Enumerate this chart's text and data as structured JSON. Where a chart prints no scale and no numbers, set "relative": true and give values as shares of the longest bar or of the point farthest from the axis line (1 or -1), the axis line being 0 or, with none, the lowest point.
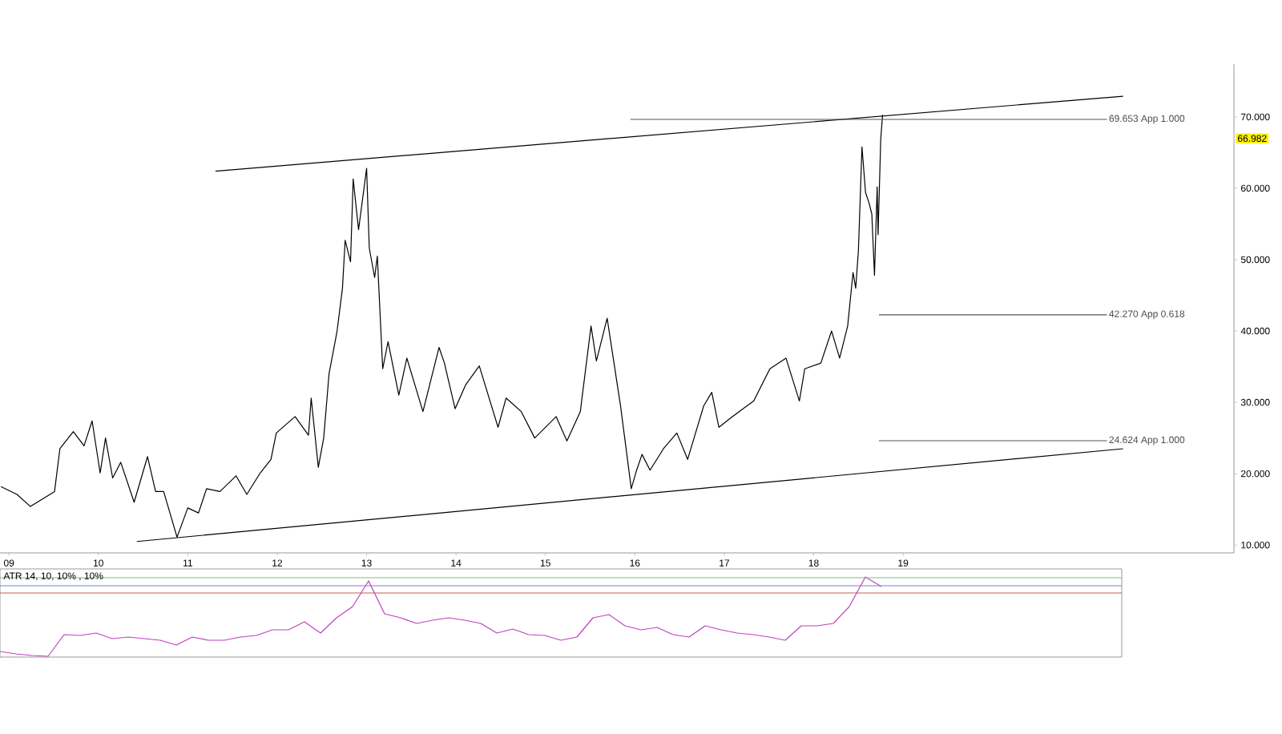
{
  "chart_data": [
    {
      "type": "line",
      "xlim": [
        2008.9,
        2022.7
      ],
      "ylim": [
        8.9,
        77.4
      ],
      "xticks": [
        {
          "value": 2009,
          "label": "09"
        },
        {
          "value": 2010,
          "label": "10"
        },
        {
          "value": 2011,
          "label": "11"
        },
        {
          "value": 2012,
          "label": "12"
        },
        {
          "value": 2013,
          "label": "13"
        },
        {
          "value": 2014,
          "label": "14"
        },
        {
          "value": 2015,
          "label": "15"
        },
        {
          "value": 2016,
          "label": "16"
        },
        {
          "value": 2017,
          "label": "17"
        },
        {
          "value": 2018,
          "label": "18"
        },
        {
          "value": 2019,
          "label": "19"
        }
      ],
      "yticks": [
        {
          "value": 10,
          "label": "10.000"
        },
        {
          "value": 20,
          "label": "20.000"
        },
        {
          "value": 30,
          "label": "30.000"
        },
        {
          "value": 40,
          "label": "40.000"
        },
        {
          "value": 50,
          "label": "50.000"
        },
        {
          "value": 60,
          "label": "60.000"
        },
        {
          "value": 70,
          "label": "70.000"
        }
      ],
      "annotations": [
        {
          "text": "66.982",
          "y": 66.982
        }
      ],
      "series": [
        {
          "color": "#000000",
          "x": [
            2008.91,
            2009.09,
            2009.24,
            2009.51,
            2009.54,
            2009.57,
            2009.72,
            2009.84,
            2009.93,
            2010.02,
            2010.08,
            2010.16,
            2010.25,
            2010.4,
            2010.55,
            2010.64,
            2010.73,
            2010.88,
            2011.0,
            2011.12,
            2011.21,
            2011.36,
            2011.54,
            2011.66,
            2011.81,
            2011.93,
            2011.99,
            2012.2,
            2012.35,
            2012.38,
            2012.46,
            2012.52,
            2012.58,
            2012.67,
            2012.73,
            2012.76,
            2012.82,
            2012.85,
            2012.91,
            2013.0,
            2013.03,
            2013.09,
            2013.12,
            2013.18,
            2013.24,
            2013.36,
            2013.45,
            2013.63,
            2013.81,
            2013.87,
            2013.99,
            2014.11,
            2014.26,
            2014.47,
            2014.56,
            2014.73,
            2014.88,
            2015.12,
            2015.24,
            2015.39,
            2015.51,
            2015.57,
            2015.69,
            2015.84,
            2015.96,
            2016.02,
            2016.08,
            2016.17,
            2016.32,
            2016.47,
            2016.59,
            2016.77,
            2016.86,
            2016.94,
            2017.09,
            2017.33,
            2017.51,
            2017.69,
            2017.84,
            2017.9,
            2018.08,
            2018.2,
            2018.29,
            2018.38,
            2018.44,
            2018.47,
            2018.5,
            2018.54,
            2018.58,
            2018.62,
            2018.65,
            2018.68,
            2018.71,
            2018.72,
            2018.75,
            2018.77
          ],
          "values": [
            18.2,
            17.1,
            15.4,
            17.5,
            20.5,
            23.5,
            25.9,
            23.9,
            27.4,
            20.1,
            25.0,
            19.4,
            21.6,
            16.0,
            22.4,
            17.5,
            17.5,
            11.1,
            15.2,
            14.5,
            17.9,
            17.5,
            19.7,
            17.1,
            20.1,
            22.0,
            25.7,
            28.0,
            25.4,
            30.6,
            20.9,
            25.0,
            34.0,
            40.0,
            46.0,
            52.7,
            49.7,
            61.3,
            54.2,
            62.8,
            51.6,
            47.5,
            50.5,
            34.7,
            38.5,
            31.0,
            36.2,
            28.7,
            37.7,
            35.5,
            29.1,
            32.5,
            35.1,
            26.5,
            30.6,
            28.7,
            25.0,
            28.0,
            24.6,
            28.7,
            40.7,
            35.8,
            41.8,
            29.5,
            17.9,
            20.5,
            22.7,
            20.5,
            23.5,
            25.7,
            22.0,
            29.5,
            31.4,
            26.5,
            28.0,
            30.2,
            34.7,
            36.2,
            30.2,
            34.7,
            35.5,
            40.0,
            36.2,
            40.7,
            48.2,
            46.0,
            51.2,
            65.8,
            59.4,
            57.9,
            56.4,
            47.8,
            60.2,
            53.5,
            66.9,
            70.3
          ]
        },
        {
          "color": "#000000",
          "x": [
            2011.31,
            2021.46
          ],
          "values": [
            62.4,
            72.9
          ]
        },
        {
          "color": "#000000",
          "x": [
            2010.43,
            2021.46
          ],
          "values": [
            10.5,
            23.5
          ]
        },
        {
          "name": "69.653 App 1.000",
          "color": "#555555",
          "x": [
            2015.95,
            2021.28
          ],
          "values": [
            69.653,
            69.653
          ]
        },
        {
          "name": "42.270 App 0.618",
          "color": "#555555",
          "x": [
            2018.73,
            2021.28
          ],
          "values": [
            42.27,
            42.27
          ]
        },
        {
          "name": "24.624 App 1.000",
          "color": "#555555",
          "x": [
            2018.73,
            2021.28
          ],
          "values": [
            24.624,
            24.624
          ]
        }
      ]
    },
    {
      "type": "line",
      "title": "ATR 14, 10, 10% , 10%",
      "relative": true,
      "categories": [
        null,
        null,
        null,
        null,
        null,
        null,
        null,
        null,
        null,
        null,
        null,
        null,
        null,
        null,
        null,
        null,
        null,
        null,
        null,
        null,
        null,
        null,
        null,
        null,
        null,
        null,
        null,
        null,
        null,
        null,
        null,
        null,
        null,
        null,
        null,
        null,
        null,
        null,
        null,
        null,
        null,
        null,
        null,
        null,
        null,
        null,
        null,
        null,
        null,
        null,
        null,
        null,
        null,
        null,
        null,
        null
      ],
      "ref_lines": [
        {
          "axis": "y",
          "value": 0.99,
          "color": "#80c080"
        },
        {
          "axis": "y",
          "value": 0.89,
          "color": "#8080d0"
        },
        {
          "axis": "y",
          "value": 0.8,
          "color": "#c06060"
        }
      ],
      "series": [
        {
          "color": "#c040c0",
          "values": [
            0.07,
            0.04,
            0.02,
            0.01,
            0.28,
            0.27,
            0.3,
            0.23,
            0.25,
            0.23,
            0.21,
            0.15,
            0.25,
            0.21,
            0.21,
            0.25,
            0.27,
            0.34,
            0.34,
            0.44,
            0.3,
            0.49,
            0.63,
            0.95,
            0.54,
            0.49,
            0.42,
            0.46,
            0.49,
            0.46,
            0.42,
            0.3,
            0.35,
            0.28,
            0.27,
            0.21,
            0.25,
            0.49,
            0.53,
            0.39,
            0.34,
            0.37,
            0.28,
            0.25,
            0.39,
            0.34,
            0.3,
            0.28,
            0.25,
            0.21,
            0.39,
            0.39,
            0.42,
            0.63,
            1,
            0.88
          ]
        }
      ]
    }
  ]
}
